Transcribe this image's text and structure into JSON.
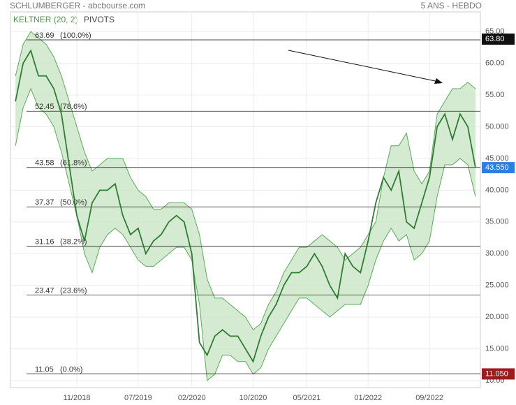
{
  "chart_data": {
    "type": "line",
    "title": "SCHLUMBERGER - abcbourse.com",
    "period": "5 ANS - HEBDO",
    "categories": [
      "03/2018",
      "04/2018",
      "05/2018",
      "06/2018",
      "07/2018",
      "08/2018",
      "09/2018",
      "10/2018",
      "11/2018",
      "12/2018",
      "01/2019",
      "02/2019",
      "03/2019",
      "04/2019",
      "05/2019",
      "06/2019",
      "07/2019",
      "08/2019",
      "09/2019",
      "10/2019",
      "11/2019",
      "12/2019",
      "01/2020",
      "02/2020",
      "03/2020",
      "04/2020",
      "05/2020",
      "06/2020",
      "07/2020",
      "08/2020",
      "09/2020",
      "10/2020",
      "11/2020",
      "12/2020",
      "01/2021",
      "02/2021",
      "03/2021",
      "04/2021",
      "05/2021",
      "06/2021",
      "07/2021",
      "08/2021",
      "09/2021",
      "10/2021",
      "11/2021",
      "12/2021",
      "01/2022",
      "02/2022",
      "03/2022",
      "04/2022",
      "05/2022",
      "06/2022",
      "07/2022",
      "08/2022",
      "09/2022",
      "10/2022",
      "11/2022",
      "12/2022",
      "01/2023",
      "02/2023",
      "03/2023"
    ],
    "xticks": [
      "11/2018",
      "07/2019",
      "02/2020",
      "10/2020",
      "05/2021",
      "01/2022",
      "09/2022"
    ],
    "series": [
      {
        "color": "#2e7d32",
        "values": [
          54,
          60,
          62,
          58,
          58,
          56,
          52,
          44,
          36,
          32,
          38,
          40,
          40,
          41,
          36,
          33,
          34,
          30,
          32,
          33,
          35,
          36,
          35,
          30,
          16,
          14,
          17,
          18,
          17,
          17,
          15,
          13,
          17,
          20,
          22,
          25,
          27,
          27,
          28,
          30,
          28,
          25,
          23,
          30,
          28,
          27,
          32,
          38,
          42,
          40,
          43,
          35,
          34,
          38,
          42,
          50,
          52,
          48,
          52,
          50,
          43.55
        ]
      }
    ],
    "keltner": {
      "label": "KELTNER (20, 2)",
      "color": "#5aaa5a",
      "fill": "#cde8c9",
      "upper": [
        58,
        63,
        65,
        64,
        63,
        61,
        58,
        54,
        50,
        46,
        43,
        44,
        45,
        45,
        45,
        42,
        40,
        39,
        37,
        37,
        38,
        38,
        38,
        37,
        33,
        26,
        23,
        23,
        22,
        21,
        20,
        18,
        19,
        22,
        24,
        27,
        29,
        31,
        31,
        32,
        33,
        32,
        31,
        29,
        30,
        31,
        33,
        35,
        42,
        47,
        47,
        49,
        43,
        41,
        43,
        52,
        54,
        56,
        56,
        57,
        56
      ],
      "lower": [
        47,
        53,
        56,
        53,
        52,
        50,
        46,
        41,
        36,
        30,
        27,
        31,
        33,
        34,
        33,
        31,
        29,
        28,
        28,
        29,
        30,
        31,
        31,
        29,
        22,
        10,
        11,
        14,
        14,
        13,
        13,
        11,
        12,
        15,
        17,
        19,
        21,
        23,
        23,
        22,
        21,
        20,
        21,
        22,
        22,
        22,
        25,
        29,
        32,
        34,
        32,
        33,
        29,
        30,
        32,
        39,
        44,
        44,
        45,
        44,
        39
      ]
    },
    "pivots": {
      "label": "PIVOTS",
      "levels": [
        {
          "value": 63.69,
          "percent": "(100.0%)"
        },
        {
          "value": 52.45,
          "percent": "(78.6%)"
        },
        {
          "value": 43.58,
          "percent": "(61.8%)"
        },
        {
          "value": 37.37,
          "percent": "(50.0%)"
        },
        {
          "value": 31.16,
          "percent": "(38.2%)"
        },
        {
          "value": 23.47,
          "percent": "(23.6%)"
        },
        {
          "value": 11.05,
          "percent": "(0.0%)"
        }
      ]
    },
    "price_tags": [
      {
        "value": 63.8,
        "label": "63.80",
        "color": "#111111"
      },
      {
        "value": 43.55,
        "label": "43.550",
        "color": "#2f7de1"
      },
      {
        "value": 11.05,
        "label": "11.050",
        "color": "#9b1c1c"
      }
    ],
    "ylim": [
      8.9,
      68.1
    ],
    "yticks": [
      {
        "value": 10,
        "label": "10.00"
      },
      {
        "value": 15,
        "label": "15.000"
      },
      {
        "value": 20,
        "label": "20.000"
      },
      {
        "value": 25,
        "label": "25.000"
      },
      {
        "value": 30,
        "label": "30.000"
      },
      {
        "value": 35,
        "label": "35.000"
      },
      {
        "value": 40,
        "label": "40.000"
      },
      {
        "value": 45,
        "label": "45.000"
      },
      {
        "value": 50,
        "label": "50.000"
      },
      {
        "value": 55,
        "label": "55.00"
      },
      {
        "value": 60,
        "label": "60.00"
      },
      {
        "value": 65,
        "label": "65.00"
      }
    ]
  }
}
